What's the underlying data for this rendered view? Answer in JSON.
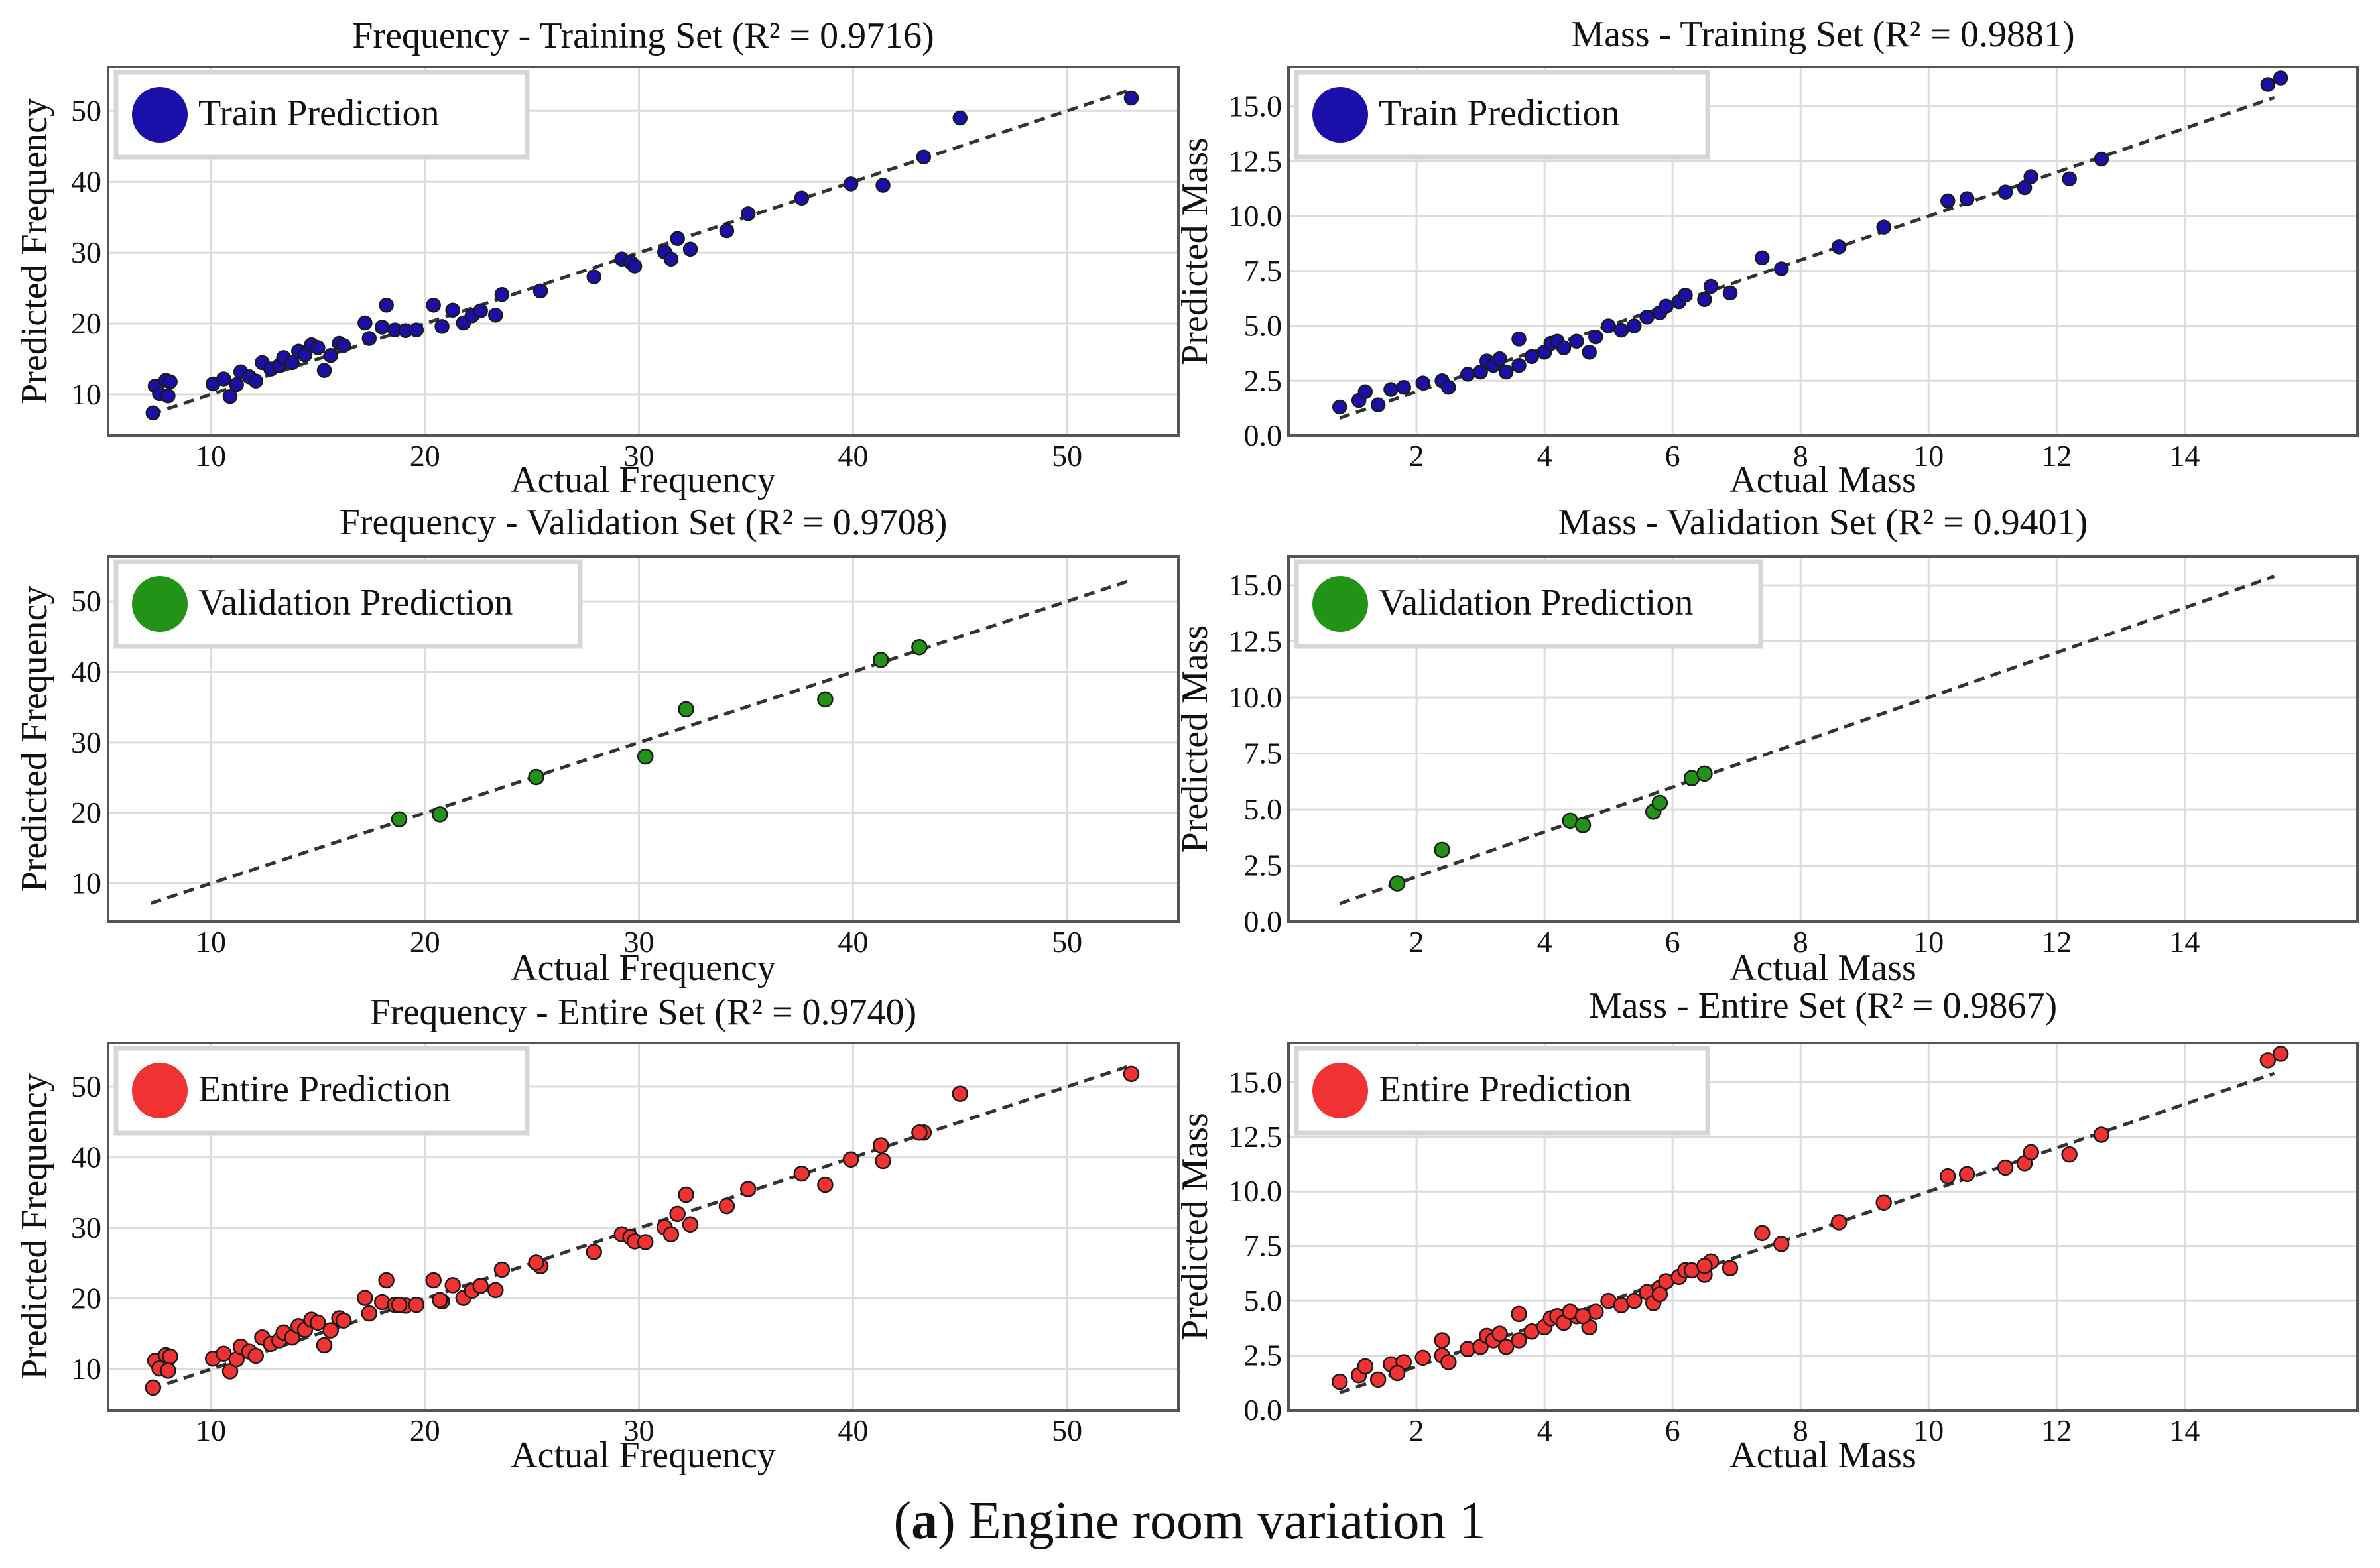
{
  "caption": {
    "label": "a",
    "text": "Engine room variation 1"
  },
  "colors": {
    "train": "#1a0fa8",
    "validation": "#239318",
    "entire": "#f03232",
    "grid": "#dcdcdc",
    "frame": "#555555",
    "legend_border": "#d6d6d6",
    "diagonal": "#333333"
  },
  "chart_data": [
    {
      "type": "scatter",
      "id": "freq-train",
      "title": "Frequency - Training Set (R² = 0.9716)",
      "xlabel": "Actual Frequency",
      "ylabel": "Predicted Frequency",
      "xlim": [
        5.2,
        55.2
      ],
      "ylim": [
        4.2,
        56.2
      ],
      "xticks": [
        10,
        20,
        30,
        40,
        50
      ],
      "yticks": [
        10,
        20,
        30,
        40,
        50
      ],
      "xtick_labels": [
        "10",
        "20",
        "30",
        "40",
        "50"
      ],
      "ytick_labels": [
        "10",
        "20",
        "30",
        "40",
        "50"
      ],
      "diagonal": [
        7.2,
        53
      ],
      "legend": {
        "label": "Train Prediction",
        "color": "train"
      },
      "points": [
        [
          7.3,
          7.4
        ],
        [
          7.4,
          11.2
        ],
        [
          7.6,
          10.1
        ],
        [
          7.9,
          12
        ],
        [
          8.1,
          11.8
        ],
        [
          8,
          9.8
        ],
        [
          10.1,
          11.5
        ],
        [
          10.6,
          12.2
        ],
        [
          10.9,
          9.7
        ],
        [
          11.2,
          11.4
        ],
        [
          11.4,
          13.2
        ],
        [
          11.8,
          12.5
        ],
        [
          12.1,
          11.9
        ],
        [
          12.4,
          14.5
        ],
        [
          12.8,
          13.6
        ],
        [
          13.2,
          14.1
        ],
        [
          13.4,
          15.2
        ],
        [
          13.8,
          14.5
        ],
        [
          14.1,
          16.1
        ],
        [
          14.4,
          15.6
        ],
        [
          14.7,
          17
        ],
        [
          15,
          16.6
        ],
        [
          15.3,
          13.4
        ],
        [
          15.6,
          15.5
        ],
        [
          16,
          17.2
        ],
        [
          16.2,
          16.9
        ],
        [
          17.2,
          20.1
        ],
        [
          17.4,
          17.9
        ],
        [
          18,
          19.5
        ],
        [
          18.2,
          22.6
        ],
        [
          18.6,
          19.1
        ],
        [
          19.1,
          19
        ],
        [
          19.6,
          19.1
        ],
        [
          20.4,
          22.6
        ],
        [
          20.8,
          19.6
        ],
        [
          21.3,
          21.9
        ],
        [
          21.8,
          20.1
        ],
        [
          22.2,
          21.1
        ],
        [
          22.6,
          21.8
        ],
        [
          23.3,
          21.2
        ],
        [
          23.6,
          24.1
        ],
        [
          25.4,
          24.6
        ],
        [
          27.9,
          26.6
        ],
        [
          29.2,
          29.1
        ],
        [
          29.6,
          28.7
        ],
        [
          29.8,
          28.1
        ],
        [
          31.2,
          30.1
        ],
        [
          31.5,
          29.1
        ],
        [
          31.8,
          32
        ],
        [
          32.4,
          30.5
        ],
        [
          34.1,
          33.1
        ],
        [
          35.1,
          35.5
        ],
        [
          37.6,
          37.7
        ],
        [
          39.9,
          39.7
        ],
        [
          41.4,
          39.5
        ],
        [
          43.3,
          43.5
        ],
        [
          45,
          49
        ],
        [
          53,
          51.8
        ]
      ]
    },
    {
      "type": "scatter",
      "id": "mass-train",
      "title": "Mass - Training Set (R² = 0.9881)",
      "xlabel": "Actual Mass",
      "ylabel": "Predicted Mass",
      "xlim": [
        0,
        16.7
      ],
      "ylim": [
        0,
        16.8
      ],
      "xticks": [
        2,
        4,
        6,
        8,
        10,
        12,
        14
      ],
      "yticks": [
        0,
        2.5,
        5,
        7.5,
        10,
        12.5,
        15
      ],
      "xtick_labels": [
        "2",
        "4",
        "6",
        "8",
        "10",
        "12",
        "14"
      ],
      "ytick_labels": [
        "0.0",
        "2.5",
        "5.0",
        "7.5",
        "10.0",
        "12.5",
        "15.0"
      ],
      "diagonal": [
        0.8,
        15.4
      ],
      "legend": {
        "label": "Train Prediction",
        "color": "train"
      },
      "points": [
        [
          0.8,
          1.3
        ],
        [
          1.1,
          1.6
        ],
        [
          1.2,
          2
        ],
        [
          1.4,
          1.4
        ],
        [
          1.6,
          2.1
        ],
        [
          1.8,
          2.2
        ],
        [
          2.1,
          2.4
        ],
        [
          2.4,
          2.5
        ],
        [
          2.5,
          2.2
        ],
        [
          2.8,
          2.8
        ],
        [
          3,
          2.9
        ],
        [
          3.1,
          3.4
        ],
        [
          3.2,
          3.2
        ],
        [
          3.3,
          3.5
        ],
        [
          3.4,
          2.9
        ],
        [
          3.6,
          3.2
        ],
        [
          3.6,
          4.4
        ],
        [
          3.8,
          3.6
        ],
        [
          4,
          3.8
        ],
        [
          4.1,
          4.2
        ],
        [
          4.2,
          4.3
        ],
        [
          4.3,
          4
        ],
        [
          4.5,
          4.3
        ],
        [
          4.7,
          3.8
        ],
        [
          4.8,
          4.5
        ],
        [
          5,
          5
        ],
        [
          5.2,
          4.8
        ],
        [
          5.4,
          5
        ],
        [
          5.6,
          5.4
        ],
        [
          5.8,
          5.6
        ],
        [
          5.9,
          5.9
        ],
        [
          6.1,
          6.1
        ],
        [
          6.2,
          6.4
        ],
        [
          6.5,
          6.2
        ],
        [
          6.6,
          6.8
        ],
        [
          6.9,
          6.5
        ],
        [
          7.4,
          8.1
        ],
        [
          7.7,
          7.6
        ],
        [
          8.6,
          8.6
        ],
        [
          9.3,
          9.5
        ],
        [
          10.3,
          10.7
        ],
        [
          10.6,
          10.8
        ],
        [
          11.2,
          11.1
        ],
        [
          11.5,
          11.3
        ],
        [
          11.6,
          11.8
        ],
        [
          12.2,
          11.7
        ],
        [
          12.7,
          12.6
        ],
        [
          15.3,
          16
        ],
        [
          15.5,
          16.3
        ]
      ]
    },
    {
      "type": "scatter",
      "id": "freq-val",
      "title": "Frequency - Validation Set (R² = 0.9708)",
      "xlabel": "Actual Frequency",
      "ylabel": "Predicted Frequency",
      "xlim": [
        5.2,
        55.2
      ],
      "ylim": [
        4.6,
        56.4
      ],
      "xticks": [
        10,
        20,
        30,
        40,
        50
      ],
      "yticks": [
        10,
        20,
        30,
        40,
        50
      ],
      "xtick_labels": [
        "10",
        "20",
        "30",
        "40",
        "50"
      ],
      "ytick_labels": [
        "10",
        "20",
        "30",
        "40",
        "50"
      ],
      "diagonal": [
        7.2,
        53
      ],
      "legend": {
        "label": "Validation Prediction",
        "color": "validation"
      },
      "points": [
        [
          18.8,
          19.1
        ],
        [
          20.7,
          19.8
        ],
        [
          25.2,
          25.1
        ],
        [
          30.3,
          28
        ],
        [
          32.2,
          34.7
        ],
        [
          38.7,
          36.1
        ],
        [
          41.3,
          41.7
        ],
        [
          43.1,
          43.5
        ]
      ]
    },
    {
      "type": "scatter",
      "id": "mass-val",
      "title": "Mass - Validation Set (R² = 0.9401)",
      "xlabel": "Actual Mass",
      "ylabel": "Predicted Mass",
      "xlim": [
        0,
        16.7
      ],
      "ylim": [
        0,
        16.3
      ],
      "xticks": [
        2,
        4,
        6,
        8,
        10,
        12,
        14
      ],
      "yticks": [
        0,
        2.5,
        5,
        7.5,
        10,
        12.5,
        15
      ],
      "xtick_labels": [
        "2",
        "4",
        "6",
        "8",
        "10",
        "12",
        "14"
      ],
      "ytick_labels": [
        "0.0",
        "2.5",
        "5.0",
        "7.5",
        "10.0",
        "12.5",
        "15.0"
      ],
      "diagonal": [
        0.8,
        15.4
      ],
      "legend": {
        "label": "Validation Prediction",
        "color": "validation"
      },
      "points": [
        [
          1.7,
          1.7
        ],
        [
          2.4,
          3.2
        ],
        [
          4.4,
          4.5
        ],
        [
          4.6,
          4.3
        ],
        [
          5.7,
          4.9
        ],
        [
          5.8,
          5.3
        ],
        [
          6.3,
          6.4
        ],
        [
          6.5,
          6.6
        ]
      ]
    },
    {
      "type": "scatter",
      "id": "freq-entire",
      "title": "Frequency - Entire Set (R² = 0.9740)",
      "xlabel": "Actual Frequency",
      "ylabel": "Predicted Frequency",
      "xlim": [
        5.2,
        55.2
      ],
      "ylim": [
        4.2,
        56.2
      ],
      "xticks": [
        10,
        20,
        30,
        40,
        50
      ],
      "yticks": [
        10,
        20,
        30,
        40,
        50
      ],
      "xtick_labels": [
        "10",
        "20",
        "30",
        "40",
        "50"
      ],
      "ytick_labels": [
        "10",
        "20",
        "30",
        "40",
        "50"
      ],
      "diagonal": [
        7.2,
        53
      ],
      "legend": {
        "label": "Entire Prediction",
        "color": "entire"
      },
      "points": [
        [
          7.3,
          7.4
        ],
        [
          7.4,
          11.2
        ],
        [
          7.6,
          10.1
        ],
        [
          7.9,
          12
        ],
        [
          8.1,
          11.8
        ],
        [
          8,
          9.8
        ],
        [
          10.1,
          11.5
        ],
        [
          10.6,
          12.2
        ],
        [
          10.9,
          9.7
        ],
        [
          11.2,
          11.4
        ],
        [
          11.4,
          13.2
        ],
        [
          11.8,
          12.5
        ],
        [
          12.1,
          11.9
        ],
        [
          12.4,
          14.5
        ],
        [
          12.8,
          13.6
        ],
        [
          13.2,
          14.1
        ],
        [
          13.4,
          15.2
        ],
        [
          13.8,
          14.5
        ],
        [
          14.1,
          16.1
        ],
        [
          14.4,
          15.6
        ],
        [
          14.7,
          17
        ],
        [
          15,
          16.6
        ],
        [
          15.3,
          13.4
        ],
        [
          15.6,
          15.5
        ],
        [
          16,
          17.2
        ],
        [
          16.2,
          16.9
        ],
        [
          17.2,
          20.1
        ],
        [
          17.4,
          17.9
        ],
        [
          18,
          19.5
        ],
        [
          18.2,
          22.6
        ],
        [
          18.6,
          19.1
        ],
        [
          19.1,
          19
        ],
        [
          19.6,
          19.1
        ],
        [
          20.4,
          22.6
        ],
        [
          20.8,
          19.6
        ],
        [
          21.3,
          21.9
        ],
        [
          21.8,
          20.1
        ],
        [
          22.2,
          21.1
        ],
        [
          22.6,
          21.8
        ],
        [
          23.3,
          21.2
        ],
        [
          23.6,
          24.1
        ],
        [
          25.4,
          24.6
        ],
        [
          27.9,
          26.6
        ],
        [
          29.2,
          29.1
        ],
        [
          29.6,
          28.7
        ],
        [
          29.8,
          28.1
        ],
        [
          31.2,
          30.1
        ],
        [
          31.5,
          29.1
        ],
        [
          31.8,
          32
        ],
        [
          32.4,
          30.5
        ],
        [
          34.1,
          33.1
        ],
        [
          35.1,
          35.5
        ],
        [
          37.6,
          37.7
        ],
        [
          39.9,
          39.7
        ],
        [
          41.4,
          39.5
        ],
        [
          43.3,
          43.5
        ],
        [
          45,
          49
        ],
        [
          53,
          51.8
        ],
        [
          18.8,
          19.1
        ],
        [
          20.7,
          19.8
        ],
        [
          25.2,
          25.1
        ],
        [
          30.3,
          28
        ],
        [
          32.2,
          34.7
        ],
        [
          38.7,
          36.1
        ],
        [
          41.3,
          41.7
        ],
        [
          43.1,
          43.5
        ]
      ]
    },
    {
      "type": "scatter",
      "id": "mass-entire",
      "title": "Mass - Entire Set (R² = 0.9867)",
      "xlabel": "Actual Mass",
      "ylabel": "Predicted Mass",
      "xlim": [
        0,
        16.7
      ],
      "ylim": [
        0,
        16.8
      ],
      "xticks": [
        2,
        4,
        6,
        8,
        10,
        12,
        14
      ],
      "yticks": [
        0,
        2.5,
        5,
        7.5,
        10,
        12.5,
        15
      ],
      "xtick_labels": [
        "2",
        "4",
        "6",
        "8",
        "10",
        "12",
        "14"
      ],
      "ytick_labels": [
        "0.0",
        "2.5",
        "5.0",
        "7.5",
        "10.0",
        "12.5",
        "15.0"
      ],
      "diagonal": [
        0.8,
        15.4
      ],
      "legend": {
        "label": "Entire Prediction",
        "color": "entire"
      },
      "points": [
        [
          0.8,
          1.3
        ],
        [
          1.1,
          1.6
        ],
        [
          1.2,
          2
        ],
        [
          1.4,
          1.4
        ],
        [
          1.6,
          2.1
        ],
        [
          1.8,
          2.2
        ],
        [
          2.1,
          2.4
        ],
        [
          2.4,
          2.5
        ],
        [
          2.5,
          2.2
        ],
        [
          2.8,
          2.8
        ],
        [
          3,
          2.9
        ],
        [
          3.1,
          3.4
        ],
        [
          3.2,
          3.2
        ],
        [
          3.3,
          3.5
        ],
        [
          3.4,
          2.9
        ],
        [
          3.6,
          3.2
        ],
        [
          3.6,
          4.4
        ],
        [
          3.8,
          3.6
        ],
        [
          4,
          3.8
        ],
        [
          4.1,
          4.2
        ],
        [
          4.2,
          4.3
        ],
        [
          4.3,
          4
        ],
        [
          4.5,
          4.3
        ],
        [
          4.7,
          3.8
        ],
        [
          4.8,
          4.5
        ],
        [
          5,
          5
        ],
        [
          5.2,
          4.8
        ],
        [
          5.4,
          5
        ],
        [
          5.6,
          5.4
        ],
        [
          5.8,
          5.6
        ],
        [
          5.9,
          5.9
        ],
        [
          6.1,
          6.1
        ],
        [
          6.2,
          6.4
        ],
        [
          6.5,
          6.2
        ],
        [
          6.6,
          6.8
        ],
        [
          6.9,
          6.5
        ],
        [
          7.4,
          8.1
        ],
        [
          7.7,
          7.6
        ],
        [
          8.6,
          8.6
        ],
        [
          9.3,
          9.5
        ],
        [
          10.3,
          10.7
        ],
        [
          10.6,
          10.8
        ],
        [
          11.2,
          11.1
        ],
        [
          11.5,
          11.3
        ],
        [
          11.6,
          11.8
        ],
        [
          12.2,
          11.7
        ],
        [
          12.7,
          12.6
        ],
        [
          15.3,
          16
        ],
        [
          15.5,
          16.3
        ],
        [
          1.7,
          1.7
        ],
        [
          2.4,
          3.2
        ],
        [
          4.4,
          4.5
        ],
        [
          4.6,
          4.3
        ],
        [
          5.7,
          4.9
        ],
        [
          5.8,
          5.3
        ],
        [
          6.3,
          6.4
        ],
        [
          6.5,
          6.6
        ]
      ]
    }
  ]
}
